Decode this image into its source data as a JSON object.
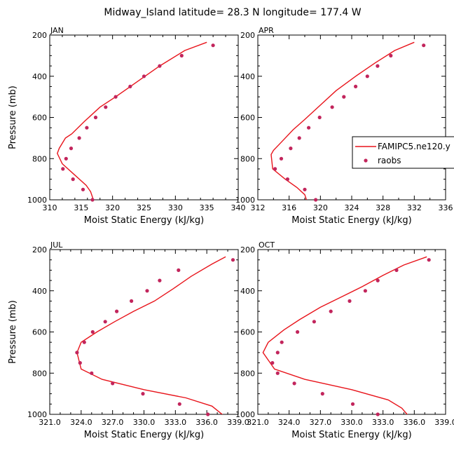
{
  "figure": {
    "title": "Midway_Island   latitude= 28.3 N longitude= 177.4 W"
  },
  "legend": {
    "placement": "right of APR panel",
    "model_label": "FAMIPC5.ne120.y",
    "obs_label": "raobs"
  },
  "colors": {
    "model_line": "#e8141b",
    "obs_marker": "#c2255c"
  },
  "chart_data": [
    {
      "type": "line",
      "panel_title": "JAN",
      "xlabel": "Moist Static Energy (kJ/kg)",
      "ylabel": "Pressure (mb)",
      "xlim": [
        310,
        340
      ],
      "ylim": [
        1000,
        200
      ],
      "xticks": [
        310,
        312,
        314,
        316,
        318,
        320,
        322,
        324,
        326,
        328,
        330,
        332,
        334,
        336,
        338,
        340
      ],
      "xtick_labels": [
        {
          "v": 310,
          "t": "310"
        },
        {
          "v": 315,
          "t": "315"
        },
        {
          "v": 320,
          "t": "320"
        },
        {
          "v": 325,
          "t": "325"
        },
        {
          "v": 330,
          "t": "330"
        },
        {
          "v": 335,
          "t": "335"
        },
        {
          "v": 340,
          "t": "340"
        }
      ],
      "yticks": [
        200,
        250,
        300,
        350,
        400,
        450,
        500,
        550,
        600,
        650,
        700,
        750,
        800,
        850,
        900,
        950,
        1000
      ],
      "ytick_labels": [
        {
          "v": 200,
          "t": "200"
        },
        {
          "v": 400,
          "t": "400"
        },
        {
          "v": 600,
          "t": "600"
        },
        {
          "v": 800,
          "t": "800"
        },
        {
          "v": 1000,
          "t": "1000"
        }
      ],
      "show_ylabel": true,
      "series": [
        {
          "name": "FAMIPC5.ne120.y",
          "kind": "line",
          "x": [
            335.0,
            331.5,
            327.5,
            324.0,
            320.5,
            318.0,
            315.5,
            313.5,
            312.5,
            311.5,
            311.2,
            312.0,
            314.0,
            315.8,
            316.5,
            317.0
          ],
          "y": [
            235,
            275,
            350,
            425,
            500,
            550,
            620,
            680,
            700,
            750,
            775,
            825,
            880,
            930,
            960,
            1005
          ]
        },
        {
          "name": "raobs",
          "kind": "scatter",
          "x": [
            336.0,
            331.0,
            327.5,
            325.0,
            322.8,
            320.5,
            318.9,
            317.3,
            315.9,
            314.7,
            313.4,
            312.6,
            312.1,
            313.7,
            315.3,
            316.8
          ],
          "y": [
            250,
            300,
            350,
            400,
            450,
            500,
            550,
            600,
            650,
            700,
            750,
            800,
            850,
            900,
            950,
            1000
          ]
        }
      ]
    },
    {
      "type": "line",
      "panel_title": "APR",
      "xlabel": "Moist Static Energy (kJ/kg)",
      "ylabel": "",
      "xlim": [
        312,
        336
      ],
      "ylim": [
        1000,
        200
      ],
      "xticks": [
        312,
        314,
        316,
        318,
        320,
        322,
        324,
        326,
        328,
        330,
        332,
        334,
        336
      ],
      "xtick_labels": [
        {
          "v": 312,
          "t": "312"
        },
        {
          "v": 316,
          "t": "316"
        },
        {
          "v": 320,
          "t": "320"
        },
        {
          "v": 324,
          "t": "324"
        },
        {
          "v": 328,
          "t": "328"
        },
        {
          "v": 332,
          "t": "332"
        },
        {
          "v": 336,
          "t": "336"
        }
      ],
      "yticks": [
        200,
        250,
        300,
        350,
        400,
        450,
        500,
        550,
        600,
        650,
        700,
        750,
        800,
        850,
        900,
        950,
        1000
      ],
      "ytick_labels": [
        {
          "v": 200,
          "t": "200"
        },
        {
          "v": 400,
          "t": "400"
        },
        {
          "v": 600,
          "t": "600"
        },
        {
          "v": 800,
          "t": "800"
        },
        {
          "v": 1000,
          "t": "1000"
        }
      ],
      "show_ylabel": false,
      "series": [
        {
          "name": "FAMIPC5.ne120.y",
          "kind": "line",
          "x": [
            332.0,
            329.5,
            327.0,
            324.5,
            322.0,
            320.0,
            318.0,
            316.5,
            315.0,
            314.0,
            313.7,
            313.9,
            315.5,
            317.0,
            318.0,
            318.3
          ],
          "y": [
            235,
            275,
            335,
            400,
            470,
            540,
            610,
            660,
            720,
            760,
            780,
            850,
            900,
            940,
            975,
            1010
          ]
        },
        {
          "name": "raobs",
          "kind": "scatter",
          "x": [
            333.2,
            329.0,
            327.3,
            326.0,
            324.5,
            323.0,
            321.5,
            319.9,
            318.5,
            317.3,
            316.2,
            315.0,
            314.2,
            315.8,
            318.0,
            319.4
          ],
          "y": [
            250,
            300,
            350,
            400,
            450,
            500,
            550,
            600,
            650,
            700,
            750,
            800,
            850,
            900,
            950,
            1000
          ]
        }
      ]
    },
    {
      "type": "line",
      "panel_title": "JUL",
      "xlabel": "Moist Static Energy (kJ/kg)",
      "ylabel": "Pressure (mb)",
      "xlim": [
        321,
        339
      ],
      "ylim": [
        1000,
        200
      ],
      "xticks": [
        321,
        322,
        323,
        324,
        325,
        326,
        327,
        328,
        329,
        330,
        331,
        332,
        333,
        334,
        335,
        336,
        337,
        338,
        339
      ],
      "xtick_labels": [
        {
          "v": 321,
          "t": "321.0"
        },
        {
          "v": 324,
          "t": "324.0"
        },
        {
          "v": 327,
          "t": "327.0"
        },
        {
          "v": 330,
          "t": "330.0"
        },
        {
          "v": 333,
          "t": "333.0"
        },
        {
          "v": 336,
          "t": "336.0"
        },
        {
          "v": 339,
          "t": "339.0"
        }
      ],
      "yticks": [
        200,
        250,
        300,
        350,
        400,
        450,
        500,
        550,
        600,
        650,
        700,
        750,
        800,
        850,
        900,
        950,
        1000
      ],
      "ytick_labels": [
        {
          "v": 200,
          "t": "200"
        },
        {
          "v": 400,
          "t": "400"
        },
        {
          "v": 600,
          "t": "600"
        },
        {
          "v": 800,
          "t": "800"
        },
        {
          "v": 1000,
          "t": "1000"
        }
      ],
      "show_ylabel": true,
      "series": [
        {
          "name": "FAMIPC5.ne120.y",
          "kind": "line",
          "x": [
            337.8,
            336.5,
            334.5,
            332.8,
            331.0,
            329.0,
            327.2,
            325.5,
            324.0,
            323.6,
            324.0,
            326.0,
            330.0,
            334.0,
            336.5,
            337.7
          ],
          "y": [
            235,
            270,
            330,
            390,
            450,
            500,
            550,
            600,
            650,
            700,
            780,
            830,
            880,
            920,
            960,
            1010
          ]
        },
        {
          "name": "raobs",
          "kind": "scatter",
          "x": [
            338.5,
            333.3,
            331.5,
            330.3,
            328.8,
            327.4,
            326.3,
            325.1,
            324.3,
            323.6,
            323.9,
            325.0,
            327.0,
            329.9,
            333.4,
            336.1
          ],
          "y": [
            250,
            300,
            350,
            400,
            450,
            500,
            550,
            600,
            650,
            700,
            750,
            800,
            850,
            900,
            950,
            1000
          ]
        }
      ]
    },
    {
      "type": "line",
      "panel_title": "OCT",
      "xlabel": "Moist Static Energy (kJ/kg)",
      "ylabel": "",
      "xlim": [
        321,
        339
      ],
      "ylim": [
        1000,
        200
      ],
      "xticks": [
        321,
        322,
        323,
        324,
        325,
        326,
        327,
        328,
        329,
        330,
        331,
        332,
        333,
        334,
        335,
        336,
        337,
        338,
        339
      ],
      "xtick_labels": [
        {
          "v": 321,
          "t": "321.0"
        },
        {
          "v": 324,
          "t": "324.0"
        },
        {
          "v": 327,
          "t": "327.0"
        },
        {
          "v": 330,
          "t": "330.0"
        },
        {
          "v": 333,
          "t": "333.0"
        },
        {
          "v": 336,
          "t": "336.0"
        },
        {
          "v": 339,
          "t": "339.0"
        }
      ],
      "yticks": [
        200,
        250,
        300,
        350,
        400,
        450,
        500,
        550,
        600,
        650,
        700,
        750,
        800,
        850,
        900,
        950,
        1000
      ],
      "ytick_labels": [
        {
          "v": 200,
          "t": "200"
        },
        {
          "v": 400,
          "t": "400"
        },
        {
          "v": 600,
          "t": "600"
        },
        {
          "v": 800,
          "t": "800"
        },
        {
          "v": 1000,
          "t": "1000"
        }
      ],
      "show_ylabel": false,
      "series": [
        {
          "name": "FAMIPC5.ne120.y",
          "kind": "line",
          "x": [
            337.2,
            335.0,
            333.0,
            331.0,
            329.0,
            327.0,
            325.0,
            323.5,
            322.0,
            321.5,
            322.6,
            325.5,
            330.0,
            333.5,
            334.8,
            335.4
          ],
          "y": [
            235,
            275,
            325,
            380,
            430,
            480,
            540,
            590,
            650,
            700,
            780,
            830,
            880,
            930,
            970,
            1005
          ]
        },
        {
          "name": "raobs",
          "kind": "scatter",
          "x": [
            337.4,
            334.3,
            332.5,
            331.3,
            329.8,
            328.0,
            326.4,
            324.8,
            323.3,
            322.9,
            322.4,
            322.9,
            324.5,
            327.2,
            330.1,
            332.5
          ],
          "y": [
            250,
            300,
            350,
            400,
            450,
            500,
            550,
            600,
            650,
            700,
            750,
            800,
            850,
            900,
            950,
            1000
          ]
        }
      ]
    }
  ]
}
